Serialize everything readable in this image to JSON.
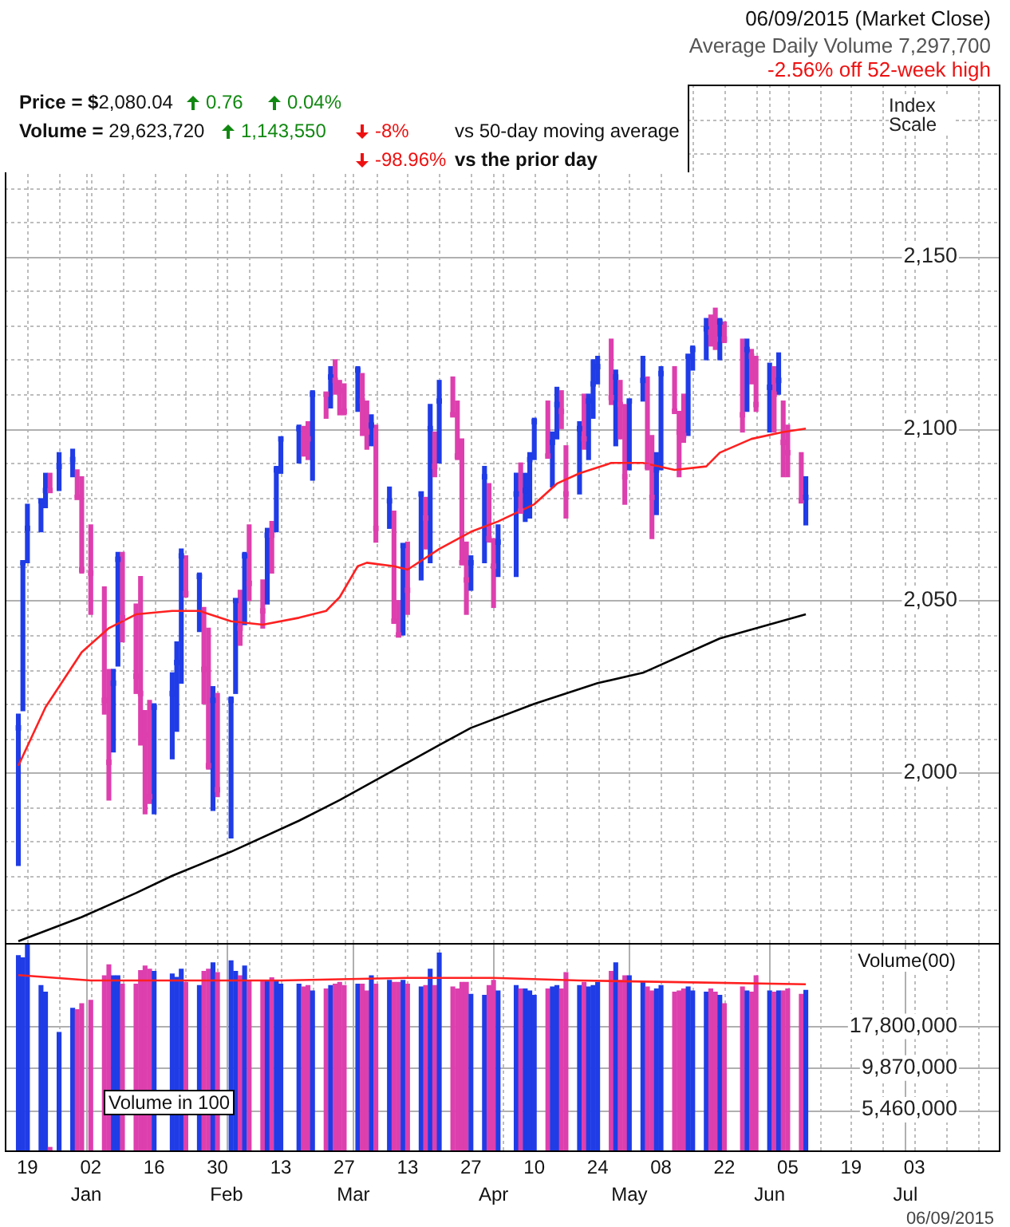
{
  "chart_data": [
    {
      "type": "bar",
      "ylabel": "Index Scale",
      "annotations": [
        "06/09/2015 (Market Close)",
        "Average Daily Volume 7,297,700",
        "-2.56% off 52-week high",
        "Price = $2,080.04",
        "0.76",
        "0.04%",
        "Volume = 29,623,720",
        "1,143,550",
        "-8%",
        "vs 50-day moving average",
        "-98.96%",
        "vs the prior day"
      ],
      "x": [
        "2014-12-17",
        "2014-12-18",
        "2014-12-19",
        "2014-12-22",
        "2014-12-23",
        "2014-12-24",
        "2014-12-26",
        "2014-12-29",
        "2014-12-30",
        "2014-12-31",
        "2015-01-02",
        "2015-01-05",
        "2015-01-06",
        "2015-01-07",
        "2015-01-08",
        "2015-01-09",
        "2015-01-12",
        "2015-01-13",
        "2015-01-14",
        "2015-01-15",
        "2015-01-16",
        "2015-01-20",
        "2015-01-21",
        "2015-01-22",
        "2015-01-23",
        "2015-01-26",
        "2015-01-27",
        "2015-01-28",
        "2015-01-29",
        "2015-01-30",
        "2015-02-02",
        "2015-02-03",
        "2015-02-04",
        "2015-02-05",
        "2015-02-06",
        "2015-02-09",
        "2015-02-10",
        "2015-02-11",
        "2015-02-12",
        "2015-02-13",
        "2015-02-17",
        "2015-02-18",
        "2015-02-19",
        "2015-02-20",
        "2015-02-23",
        "2015-02-24",
        "2015-02-25",
        "2015-02-26",
        "2015-02-27",
        "2015-03-02",
        "2015-03-03",
        "2015-03-04",
        "2015-03-05",
        "2015-03-06",
        "2015-03-09",
        "2015-03-10",
        "2015-03-11",
        "2015-03-12",
        "2015-03-13",
        "2015-03-16",
        "2015-03-17",
        "2015-03-18",
        "2015-03-19",
        "2015-03-20",
        "2015-03-23",
        "2015-03-24",
        "2015-03-25",
        "2015-03-26",
        "2015-03-27",
        "2015-03-30",
        "2015-03-31",
        "2015-04-01",
        "2015-04-02",
        "2015-04-06",
        "2015-04-07",
        "2015-04-08",
        "2015-04-09",
        "2015-04-10",
        "2015-04-13",
        "2015-04-14",
        "2015-04-15",
        "2015-04-16",
        "2015-04-17",
        "2015-04-20",
        "2015-04-21",
        "2015-04-22",
        "2015-04-23",
        "2015-04-24",
        "2015-04-27",
        "2015-04-28",
        "2015-04-29",
        "2015-04-30",
        "2015-05-01",
        "2015-05-04",
        "2015-05-05",
        "2015-05-06",
        "2015-05-07",
        "2015-05-08",
        "2015-05-11",
        "2015-05-12",
        "2015-05-13",
        "2015-05-14",
        "2015-05-15",
        "2015-05-18",
        "2015-05-19",
        "2015-05-20",
        "2015-05-21",
        "2015-05-22",
        "2015-05-26",
        "2015-05-27",
        "2015-05-28",
        "2015-05-29",
        "2015-06-01",
        "2015-06-02",
        "2015-06-03",
        "2015-06-04",
        "2015-06-05",
        "2015-06-08",
        "2015-06-09"
      ],
      "series": [
        {
          "base": [
            1973,
            2018,
            2061,
            2070,
            2077,
            2082,
            2082,
            2086,
            2080,
            2058,
            2046,
            2017,
            1992,
            2006,
            2031,
            2038,
            2023,
            2008,
            1988,
            1991,
            1988,
            2004,
            2012,
            2026,
            2051,
            2041,
            2020,
            2001,
            1989,
            1993,
            1981,
            2023,
            2037,
            2043,
            2050,
            2042,
            2049,
            2058,
            2070,
            2087,
            2090,
            2092,
            2091,
            2085,
            2103,
            2106,
            2110,
            2104,
            2104,
            2105,
            2098,
            2094,
            2095,
            2067,
            2071,
            2044,
            2040,
            2040,
            2046,
            2056,
            2065,
            2061,
            2086,
            2090,
            2104,
            2091,
            2061,
            2046,
            2053,
            2061,
            2067,
            2048,
            2057,
            2057,
            2076,
            2073,
            2074,
            2091,
            2092,
            2083,
            2097,
            2100,
            2074,
            2081,
            2094,
            2091,
            2103,
            2113,
            2107,
            2095,
            2097,
            2078,
            2088,
            2108,
            2088,
            2068,
            2075,
            2088,
            2105,
            2086,
            2096,
            2098,
            2117,
            2120,
            2124,
            2123,
            2120,
            2125,
            2099,
            2105,
            2113,
            2105,
            2099,
            2099,
            2110,
            2086,
            2086,
            2079,
            2072
          ],
          "values": [
            44,
            43,
            17,
            9,
            10,
            5,
            11,
            8,
            8,
            28,
            26,
            37,
            38,
            24,
            33,
            26,
            26,
            49,
            30,
            30,
            32,
            25,
            26,
            39,
            12,
            17,
            28,
            41,
            36,
            30,
            41,
            27,
            16,
            21,
            22,
            14,
            22,
            15,
            19,
            10,
            11,
            8,
            11,
            26,
            7,
            12,
            10,
            10,
            9,
            13,
            18,
            14,
            9,
            34,
            12,
            32,
            10,
            26,
            21,
            25,
            15,
            46,
            13,
            24,
            11,
            17,
            36,
            21,
            10,
            28,
            17,
            20,
            15,
            30,
            14,
            14,
            19,
            12,
            16,
            16,
            15,
            11,
            21,
            21,
            16,
            19,
            17,
            8,
            19,
            22,
            17,
            29,
            20,
            13,
            27,
            30,
            18,
            30,
            13,
            19,
            14,
            23,
            7,
            12,
            9,
            12,
            12,
            6,
            27,
            21,
            10,
            16,
            20,
            19,
            12,
            22,
            15,
            14,
            14
          ],
          "colors": [
            "#1f3ce6",
            "#1f3ce6",
            "#1f3ce6",
            "#1f3ce6",
            "#1f3ce6",
            "#dd3fae",
            "#1f3ce6",
            "#1f3ce6",
            "#dd3fae",
            "#dd3fae",
            "#dd3fae",
            "#dd3fae",
            "#dd3fae",
            "#1f3ce6",
            "#1f3ce6",
            "#dd3fae",
            "#dd3fae",
            "#dd3fae",
            "#dd3fae",
            "#dd3fae",
            "#1f3ce6",
            "#1f3ce6",
            "#1f3ce6",
            "#1f3ce6",
            "#dd3fae",
            "#1f3ce6",
            "#dd3fae",
            "#dd3fae",
            "#1f3ce6",
            "#dd3fae",
            "#1f3ce6",
            "#1f3ce6",
            "#dd3fae",
            "#1f3ce6",
            "#dd3fae",
            "#dd3fae",
            "#1f3ce6",
            "#dd3fae",
            "#1f3ce6",
            "#1f3ce6",
            "#1f3ce6",
            "#dd3fae",
            "#dd3fae",
            "#1f3ce6",
            "#dd3fae",
            "#1f3ce6",
            "#dd3fae",
            "#dd3fae",
            "#dd3fae",
            "#1f3ce6",
            "#dd3fae",
            "#dd3fae",
            "#1f3ce6",
            "#dd3fae",
            "#1f3ce6",
            "#dd3fae",
            "#dd3fae",
            "#1f3ce6",
            "#dd3fae",
            "#1f3ce6",
            "#dd3fae",
            "#1f3ce6",
            "#dd3fae",
            "#1f3ce6",
            "#dd3fae",
            "#dd3fae",
            "#dd3fae",
            "#dd3fae",
            "#1f3ce6",
            "#1f3ce6",
            "#dd3fae",
            "#dd3fae",
            "#1f3ce6",
            "#1f3ce6",
            "#dd3fae",
            "#1f3ce6",
            "#1f3ce6",
            "#1f3ce6",
            "#dd3fae",
            "#1f3ce6",
            "#1f3ce6",
            "#dd3fae",
            "#dd3fae",
            "#1f3ce6",
            "#dd3fae",
            "#1f3ce6",
            "#1f3ce6",
            "#1f3ce6",
            "#dd3fae",
            "#1f3ce6",
            "#dd3fae",
            "#dd3fae",
            "#1f3ce6",
            "#1f3ce6",
            "#dd3fae",
            "#dd3fae",
            "#1f3ce6",
            "#1f3ce6",
            "#dd3fae",
            "#dd3fae",
            "#dd3fae",
            "#1f3ce6",
            "#1f3ce6",
            "#1f3ce6",
            "#dd3fae",
            "#dd3fae",
            "#1f3ce6",
            "#dd3fae",
            "#dd3fae",
            "#1f3ce6",
            "#dd3fae",
            "#dd3fae",
            "#1f3ce6",
            "#dd3fae",
            "#1f3ce6",
            "#dd3fae",
            "#dd3fae",
            "#dd3fae",
            "#1f3ce6"
          ]
        },
        {
          "type": "scatter",
          "marker": "square",
          "values": [
            2013,
            2061,
            2071,
            2079,
            2082,
            2082,
            2089,
            2091,
            2080,
            2059,
            2058,
            2021,
            2003,
            2026,
            2062,
            2045,
            2028,
            2023,
            2011,
            1993,
            2019,
            2023,
            2032,
            2063,
            2052,
            2057,
            2030,
            2002,
            2021,
            1995,
            2021,
            2050,
            2042,
            2063,
            2055,
            2047,
            2069,
            2069,
            2088,
            2097,
            2100,
            2100,
            2097,
            2110,
            2110,
            2115,
            2114,
            2111,
            2105,
            2117,
            2108,
            2099,
            2101,
            2071,
            2079,
            2044,
            2040,
            2066,
            2053,
            2081,
            2074,
            2100,
            2089,
            2108,
            2104,
            2092,
            2061,
            2056,
            2061,
            2086,
            2068,
            2060,
            2067,
            2081,
            2076,
            2082,
            2091,
            2102,
            2092,
            2096,
            2107,
            2105,
            2081,
            2100,
            2097,
            2108,
            2113,
            2118,
            2109,
            2115,
            2107,
            2086,
            2108,
            2114,
            2089,
            2080,
            2088,
            2116,
            2105,
            2099,
            2098,
            2121,
            2123,
            2129,
            2128,
            2126,
            2131,
            2126,
            2104,
            2123,
            2121,
            2107,
            2112,
            2110,
            2114,
            2096,
            2093,
            2079,
            2080
          ],
          "colors": [
            "#1f3ce6",
            "#1f3ce6",
            "#1f3ce6",
            "#1f3ce6",
            "#1f3ce6",
            "#dd3fae",
            "#1f3ce6",
            "#1f3ce6",
            "#dd3fae",
            "#dd3fae",
            "#dd3fae",
            "#dd3fae",
            "#dd3fae",
            "#1f3ce6",
            "#1f3ce6",
            "#dd3fae",
            "#dd3fae",
            "#dd3fae",
            "#dd3fae",
            "#dd3fae",
            "#1f3ce6",
            "#1f3ce6",
            "#1f3ce6",
            "#1f3ce6",
            "#dd3fae",
            "#1f3ce6",
            "#dd3fae",
            "#dd3fae",
            "#1f3ce6",
            "#dd3fae",
            "#1f3ce6",
            "#1f3ce6",
            "#dd3fae",
            "#1f3ce6",
            "#dd3fae",
            "#dd3fae",
            "#1f3ce6",
            "#dd3fae",
            "#1f3ce6",
            "#1f3ce6",
            "#1f3ce6",
            "#dd3fae",
            "#dd3fae",
            "#1f3ce6",
            "#dd3fae",
            "#1f3ce6",
            "#dd3fae",
            "#dd3fae",
            "#dd3fae",
            "#1f3ce6",
            "#dd3fae",
            "#dd3fae",
            "#1f3ce6",
            "#dd3fae",
            "#1f3ce6",
            "#dd3fae",
            "#dd3fae",
            "#1f3ce6",
            "#dd3fae",
            "#1f3ce6",
            "#dd3fae",
            "#1f3ce6",
            "#dd3fae",
            "#1f3ce6",
            "#dd3fae",
            "#dd3fae",
            "#dd3fae",
            "#dd3fae",
            "#1f3ce6",
            "#1f3ce6",
            "#dd3fae",
            "#dd3fae",
            "#1f3ce6",
            "#1f3ce6",
            "#dd3fae",
            "#1f3ce6",
            "#1f3ce6",
            "#1f3ce6",
            "#dd3fae",
            "#1f3ce6",
            "#1f3ce6",
            "#dd3fae",
            "#dd3fae",
            "#1f3ce6",
            "#dd3fae",
            "#1f3ce6",
            "#1f3ce6",
            "#1f3ce6",
            "#dd3fae",
            "#1f3ce6",
            "#dd3fae",
            "#dd3fae",
            "#1f3ce6",
            "#1f3ce6",
            "#dd3fae",
            "#dd3fae",
            "#1f3ce6",
            "#1f3ce6",
            "#dd3fae",
            "#dd3fae",
            "#dd3fae",
            "#1f3ce6",
            "#1f3ce6",
            "#1f3ce6",
            "#dd3fae",
            "#dd3fae",
            "#1f3ce6",
            "#dd3fae",
            "#dd3fae",
            "#1f3ce6",
            "#dd3fae",
            "#dd3fae",
            "#1f3ce6",
            "#dd3fae",
            "#1f3ce6",
            "#dd3fae",
            "#dd3fae",
            "#dd3fae",
            "#1f3ce6"
          ]
        },
        {
          "type": "line",
          "color": "#ff2020",
          "x": [
            "2014-12-17",
            "2014-12-23",
            "2014-12-31",
            "2015-01-06",
            "2015-01-12",
            "2015-01-20",
            "2015-01-26",
            "2015-02-02",
            "2015-02-09",
            "2015-02-17",
            "2015-02-23",
            "2015-02-26",
            "2015-03-02",
            "2015-03-04",
            "2015-03-10",
            "2015-03-13",
            "2015-03-20",
            "2015-03-27",
            "2015-04-02",
            "2015-04-10",
            "2015-04-15",
            "2015-04-20",
            "2015-04-27",
            "2015-05-04",
            "2015-05-11",
            "2015-05-18",
            "2015-05-21",
            "2015-05-28",
            "2015-06-04",
            "2015-06-09"
          ],
          "values": [
            2002,
            2019,
            2035,
            2042,
            2046,
            2047,
            2047,
            2044,
            2043,
            2045,
            2047,
            2051,
            2060,
            2061,
            2060,
            2059,
            2065,
            2070,
            2073,
            2078,
            2084,
            2087,
            2090,
            2090,
            2088,
            2089,
            2093,
            2097,
            2099,
            2100
          ]
        },
        {
          "type": "line",
          "color": "#000000",
          "x": [
            "2014-12-17",
            "2014-12-31",
            "2015-01-12",
            "2015-01-20",
            "2015-02-02",
            "2015-02-17",
            "2015-02-26",
            "2015-03-09",
            "2015-03-20",
            "2015-03-27",
            "2015-04-10",
            "2015-04-24",
            "2015-05-04",
            "2015-05-21",
            "2015-06-09"
          ],
          "values": [
            1951,
            1958,
            1965,
            1970,
            1977,
            1986,
            1992,
            2000,
            2008,
            2013,
            2020,
            2026,
            2029,
            2039,
            2046
          ]
        }
      ],
      "xlim": [
        "2014-12-14",
        "2015-07-22"
      ],
      "xticks": [
        "2014-12-19",
        "2014-12-26",
        "2015-01-01",
        "2015-01-02",
        "2015-01-09",
        "2015-01-16",
        "2015-01-23",
        "2015-01-30",
        "2015-02-01",
        "2015-02-06",
        "2015-02-13",
        "2015-02-20",
        "2015-02-27",
        "2015-03-01",
        "2015-03-06",
        "2015-03-13",
        "2015-03-20",
        "2015-03-27",
        "2015-04-01",
        "2015-04-03",
        "2015-04-10",
        "2015-04-17",
        "2015-04-24",
        "2015-05-01",
        "2015-05-08",
        "2015-05-15",
        "2015-05-22",
        "2015-05-29",
        "2015-06-01",
        "2015-06-05",
        "2015-06-12",
        "2015-06-19",
        "2015-06-26",
        "2015-07-01",
        "2015-07-03",
        "2015-07-10",
        "2015-07-17"
      ],
      "ylim": [
        1950,
        2200
      ],
      "yticks": [
        {
          "value": 1960,
          "label": null
        },
        {
          "value": 1970,
          "label": null
        },
        {
          "value": 1980,
          "label": null
        },
        {
          "value": 1990,
          "label": null
        },
        {
          "value": 2000,
          "label": "2,000"
        },
        {
          "value": 2010,
          "label": null
        },
        {
          "value": 2020,
          "label": null
        },
        {
          "value": 2030,
          "label": null
        },
        {
          "value": 2040,
          "label": null
        },
        {
          "value": 2050,
          "label": "2,050"
        },
        {
          "value": 2060,
          "label": null
        },
        {
          "value": 2070,
          "label": null
        },
        {
          "value": 2080,
          "label": null
        },
        {
          "value": 2090,
          "label": null
        },
        {
          "value": 2100,
          "label": "2,100"
        },
        {
          "value": 2110,
          "label": null
        },
        {
          "value": 2120,
          "label": null
        },
        {
          "value": 2130,
          "label": null
        },
        {
          "value": 2140,
          "label": null
        },
        {
          "value": 2150,
          "label": "2,150"
        },
        {
          "value": 2160,
          "label": null
        },
        {
          "value": 2170,
          "label": null
        },
        {
          "value": 2180,
          "label": null
        },
        {
          "value": 2190,
          "label": null
        },
        {
          "value": 2200,
          "label": null
        }
      ],
      "grid": true,
      "tick_labels": "y"
    },
    {
      "type": "bar",
      "ylabel": "Volume(00)",
      "annotations": [
        "Volume in 100",
        "06/09/2015"
      ],
      "x": [
        "2014-12-17",
        "2014-12-18",
        "2014-12-19",
        "2014-12-22",
        "2014-12-23",
        "2014-12-24",
        "2014-12-26",
        "2014-12-29",
        "2014-12-30",
        "2014-12-31",
        "2015-01-02",
        "2015-01-05",
        "2015-01-06",
        "2015-01-07",
        "2015-01-08",
        "2015-01-09",
        "2015-01-12",
        "2015-01-13",
        "2015-01-14",
        "2015-01-15",
        "2015-01-16",
        "2015-01-20",
        "2015-01-21",
        "2015-01-22",
        "2015-01-23",
        "2015-01-26",
        "2015-01-27",
        "2015-01-28",
        "2015-01-29",
        "2015-01-30",
        "2015-02-02",
        "2015-02-03",
        "2015-02-04",
        "2015-02-05",
        "2015-02-06",
        "2015-02-09",
        "2015-02-10",
        "2015-02-11",
        "2015-02-12",
        "2015-02-13",
        "2015-02-17",
        "2015-02-18",
        "2015-02-19",
        "2015-02-20",
        "2015-02-23",
        "2015-02-24",
        "2015-02-25",
        "2015-02-26",
        "2015-02-27",
        "2015-03-02",
        "2015-03-03",
        "2015-03-04",
        "2015-03-05",
        "2015-03-06",
        "2015-03-09",
        "2015-03-10",
        "2015-03-11",
        "2015-03-12",
        "2015-03-13",
        "2015-03-16",
        "2015-03-17",
        "2015-03-18",
        "2015-03-19",
        "2015-03-20",
        "2015-03-23",
        "2015-03-24",
        "2015-03-25",
        "2015-03-26",
        "2015-03-27",
        "2015-03-30",
        "2015-03-31",
        "2015-04-01",
        "2015-04-02",
        "2015-04-06",
        "2015-04-07",
        "2015-04-08",
        "2015-04-09",
        "2015-04-10",
        "2015-04-13",
        "2015-04-14",
        "2015-04-15",
        "2015-04-16",
        "2015-04-17",
        "2015-04-20",
        "2015-04-21",
        "2015-04-22",
        "2015-04-23",
        "2015-04-24",
        "2015-04-27",
        "2015-04-28",
        "2015-04-29",
        "2015-04-30",
        "2015-05-01",
        "2015-05-04",
        "2015-05-05",
        "2015-05-06",
        "2015-05-07",
        "2015-05-08",
        "2015-05-11",
        "2015-05-12",
        "2015-05-13",
        "2015-05-14",
        "2015-05-15",
        "2015-05-18",
        "2015-05-19",
        "2015-05-20",
        "2015-05-21",
        "2015-05-22",
        "2015-05-26",
        "2015-05-27",
        "2015-05-28",
        "2015-05-29",
        "2015-06-01",
        "2015-06-02",
        "2015-06-03",
        "2015-06-04",
        "2015-06-05",
        "2015-06-08",
        "2015-06-09"
      ],
      "series": [
        {
          "values": [
            48400000,
            47000000,
            57000000,
            31700000,
            28900000,
            3200000,
            16300000,
            23000000,
            22500000,
            24500000,
            25700000,
            36400000,
            42600000,
            36400000,
            36400000,
            32300000,
            32300000,
            39200000,
            41800000,
            40000000,
            38800000,
            37400000,
            35600000,
            40000000,
            33200000,
            31700000,
            38800000,
            40000000,
            43800000,
            38100000,
            45000000,
            38800000,
            36400000,
            41800000,
            34100000,
            34100000,
            34100000,
            35400000,
            34100000,
            32300000,
            32300000,
            31100000,
            31700000,
            29400000,
            30200000,
            31700000,
            32300000,
            33200000,
            31700000,
            32300000,
            32300000,
            29400000,
            36400000,
            32300000,
            34100000,
            33200000,
            33200000,
            34100000,
            32300000,
            31100000,
            31700000,
            40000000,
            31700000,
            50200000,
            31100000,
            30200000,
            33200000,
            33200000,
            28000000,
            27600000,
            31700000,
            34100000,
            29400000,
            31700000,
            30200000,
            30200000,
            29400000,
            27600000,
            30200000,
            31100000,
            31700000,
            30200000,
            38100000,
            31700000,
            33200000,
            31100000,
            31700000,
            33200000,
            38800000,
            43800000,
            34100000,
            36400000,
            36400000,
            33200000,
            31100000,
            29400000,
            30200000,
            31700000,
            28900000,
            29400000,
            30200000,
            31100000,
            29400000,
            28900000,
            30200000,
            28900000,
            27600000,
            24500000,
            31100000,
            29400000,
            28900000,
            36400000,
            29400000,
            28900000,
            29400000,
            29400000,
            30200000,
            28000000,
            29600000
          ],
          "colors": [
            "#1f3ce6",
            "#1f3ce6",
            "#1f3ce6",
            "#1f3ce6",
            "#1f3ce6",
            "#dd3fae",
            "#1f3ce6",
            "#1f3ce6",
            "#dd3fae",
            "#dd3fae",
            "#dd3fae",
            "#dd3fae",
            "#dd3fae",
            "#1f3ce6",
            "#1f3ce6",
            "#dd3fae",
            "#dd3fae",
            "#dd3fae",
            "#dd3fae",
            "#dd3fae",
            "#1f3ce6",
            "#1f3ce6",
            "#1f3ce6",
            "#1f3ce6",
            "#dd3fae",
            "#1f3ce6",
            "#dd3fae",
            "#dd3fae",
            "#1f3ce6",
            "#dd3fae",
            "#1f3ce6",
            "#1f3ce6",
            "#dd3fae",
            "#1f3ce6",
            "#dd3fae",
            "#dd3fae",
            "#1f3ce6",
            "#dd3fae",
            "#1f3ce6",
            "#1f3ce6",
            "#1f3ce6",
            "#dd3fae",
            "#dd3fae",
            "#1f3ce6",
            "#dd3fae",
            "#1f3ce6",
            "#dd3fae",
            "#dd3fae",
            "#dd3fae",
            "#1f3ce6",
            "#dd3fae",
            "#dd3fae",
            "#1f3ce6",
            "#dd3fae",
            "#1f3ce6",
            "#dd3fae",
            "#dd3fae",
            "#1f3ce6",
            "#dd3fae",
            "#1f3ce6",
            "#dd3fae",
            "#1f3ce6",
            "#dd3fae",
            "#1f3ce6",
            "#dd3fae",
            "#dd3fae",
            "#dd3fae",
            "#dd3fae",
            "#1f3ce6",
            "#1f3ce6",
            "#dd3fae",
            "#dd3fae",
            "#1f3ce6",
            "#1f3ce6",
            "#dd3fae",
            "#1f3ce6",
            "#1f3ce6",
            "#1f3ce6",
            "#dd3fae",
            "#1f3ce6",
            "#1f3ce6",
            "#dd3fae",
            "#dd3fae",
            "#1f3ce6",
            "#dd3fae",
            "#1f3ce6",
            "#1f3ce6",
            "#1f3ce6",
            "#dd3fae",
            "#1f3ce6",
            "#dd3fae",
            "#dd3fae",
            "#1f3ce6",
            "#1f3ce6",
            "#dd3fae",
            "#dd3fae",
            "#1f3ce6",
            "#1f3ce6",
            "#dd3fae",
            "#dd3fae",
            "#dd3fae",
            "#1f3ce6",
            "#1f3ce6",
            "#1f3ce6",
            "#dd3fae",
            "#dd3fae",
            "#1f3ce6",
            "#dd3fae",
            "#dd3fae",
            "#1f3ce6",
            "#dd3fae",
            "#dd3fae",
            "#1f3ce6",
            "#dd3fae",
            "#1f3ce6",
            "#dd3fae",
            "#dd3fae",
            "#dd3fae",
            "#1f3ce6"
          ]
        },
        {
          "type": "line",
          "color": "#ff2020",
          "x": [
            "2014-12-17",
            "2015-01-02",
            "2015-02-13",
            "2015-03-13",
            "2015-04-01",
            "2015-04-20",
            "2015-05-15",
            "2015-06-09"
          ],
          "values": [
            36800000,
            34100000,
            34100000,
            35400000,
            35400000,
            34100000,
            33200000,
            32300000
          ]
        }
      ],
      "log": "y",
      "xlim": [
        "2014-12-14",
        "2015-07-22"
      ],
      "xticks": [
        {
          "value": "2014-12-19",
          "label": "19"
        },
        {
          "value": "2014-12-26",
          "label": null
        },
        {
          "value": "2015-01-02",
          "label": "02"
        },
        {
          "value": "2015-01-09",
          "label": null
        },
        {
          "value": "2015-01-16",
          "label": "16"
        },
        {
          "value": "2015-01-23",
          "label": null
        },
        {
          "value": "2015-01-30",
          "label": "30"
        },
        {
          "value": "2015-02-06",
          "label": null
        },
        {
          "value": "2015-02-13",
          "label": "13"
        },
        {
          "value": "2015-02-20",
          "label": null
        },
        {
          "value": "2015-02-27",
          "label": "27"
        },
        {
          "value": "2015-03-06",
          "label": null
        },
        {
          "value": "2015-03-13",
          "label": "13"
        },
        {
          "value": "2015-03-20",
          "label": null
        },
        {
          "value": "2015-03-27",
          "label": "27"
        },
        {
          "value": "2015-04-03",
          "label": null
        },
        {
          "value": "2015-04-10",
          "label": "10"
        },
        {
          "value": "2015-04-17",
          "label": null
        },
        {
          "value": "2015-04-24",
          "label": "24"
        },
        {
          "value": "2015-05-08",
          "label": "08"
        },
        {
          "value": "2015-05-15",
          "label": null
        },
        {
          "value": "2015-05-22",
          "label": "22"
        },
        {
          "value": "2015-05-29",
          "label": null
        },
        {
          "value": "2015-06-05",
          "label": "05"
        },
        {
          "value": "2015-06-12",
          "label": null
        },
        {
          "value": "2015-06-19",
          "label": "19"
        },
        {
          "value": "2015-06-26",
          "label": null
        },
        {
          "value": "2015-07-03",
          "label": "03"
        },
        {
          "value": "2015-07-10",
          "label": null
        },
        {
          "value": "2015-07-17",
          "label": null
        }
      ],
      "x2lim": [
        "2014-12-14",
        "2015-07-22"
      ],
      "x2ticks": [
        {
          "value": "2015-01-01",
          "label": "Jan"
        },
        {
          "value": "2015-02-01",
          "label": "Feb"
        },
        {
          "value": "2015-03-01",
          "label": "Mar"
        },
        {
          "value": "2015-04-01",
          "label": "Apr"
        },
        {
          "value": "2015-05-01",
          "label": "May"
        },
        {
          "value": "2015-06-01",
          "label": "Jun"
        },
        {
          "value": "2015-07-01",
          "label": "Jul"
        }
      ],
      "ylim": [
        3000000,
        58000000
      ],
      "yticks": [
        {
          "value": 5460000,
          "label": "5,460,000"
        },
        {
          "value": 9870000,
          "label": "9,870,000"
        },
        {
          "value": 17800000,
          "label": "17,800,000"
        }
      ],
      "grid": true
    }
  ]
}
